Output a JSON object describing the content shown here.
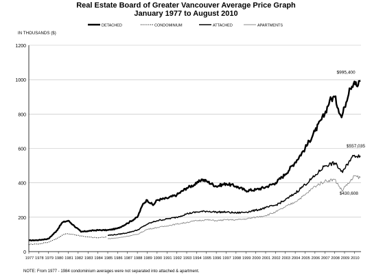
{
  "title": "Real Estate Board of Greater Vancouver Average Price Graph",
  "subtitle": "January 1977 to August 2010",
  "y_unit_label": "IN THOUSANDS ($)",
  "note": "NOTE:  From 1977 - 1984 condominium averages were not separated into attached & apartment.",
  "chart_data": {
    "type": "line",
    "title": "Real Estate Board of Greater Vancouver Average Price Graph",
    "subtitle": "January 1977 to August 2010",
    "ylabel": "IN THOUSANDS ($)",
    "ylim": [
      0,
      1200
    ],
    "yticks": [
      0,
      200,
      400,
      600,
      800,
      1000,
      1200
    ],
    "xlim": [
      1977,
      2010.67
    ],
    "xticks": [
      "1977",
      "1978",
      "1979",
      "1980",
      "1981",
      "1982",
      "1983",
      "1984",
      "1985",
      "1986",
      "1987",
      "1988",
      "1989",
      "1990",
      "1991",
      "1992",
      "1993",
      "1994",
      "1995",
      "1996",
      "1997",
      "1998",
      "1999",
      "2000",
      "2001",
      "2002",
      "2003",
      "2004",
      "2005",
      "2006",
      "2007",
      "2008",
      "2009",
      "2010"
    ],
    "grid": true,
    "legend": "top",
    "annotations": [
      "$995,400",
      "$557,035",
      "$430,608"
    ],
    "series": [
      {
        "name": "DETACHED",
        "color": "#000000",
        "style": "thick",
        "x": [
          1977,
          1978,
          1979,
          1979.8,
          1980.4,
          1981,
          1981.6,
          1982.3,
          1983,
          1984,
          1985,
          1986,
          1987,
          1988,
          1988.6,
          1989,
          1989.6,
          1990,
          1991,
          1992,
          1993,
          1994,
          1994.5,
          1995,
          1996,
          1997,
          1998,
          1999,
          2000,
          2001,
          2002,
          2003,
          2004,
          2005,
          2006,
          2007,
          2007.5,
          2008,
          2008.7,
          2009,
          2009.5,
          2010,
          2010.3,
          2010.6
        ],
        "y": [
          65,
          67,
          75,
          120,
          170,
          180,
          150,
          115,
          120,
          125,
          125,
          135,
          165,
          200,
          280,
          300,
          270,
          300,
          310,
          330,
          370,
          395,
          420,
          410,
          380,
          395,
          380,
          355,
          360,
          375,
          400,
          450,
          520,
          600,
          700,
          800,
          880,
          900,
          780,
          840,
          950,
          990,
          960,
          995
        ]
      },
      {
        "name": "CONDOMINIUM",
        "color": "#000000",
        "style": "dotted",
        "x": [
          1977,
          1978,
          1979,
          1980,
          1980.5,
          1981,
          1982,
          1983,
          1984,
          1984.9
        ],
        "y": [
          42,
          45,
          55,
          80,
          100,
          105,
          95,
          85,
          80,
          85
        ]
      },
      {
        "name": "ATTACHED",
        "color": "#000000",
        "style": "medium",
        "x": [
          1985,
          1986,
          1987,
          1988,
          1989,
          1990,
          1991,
          1992,
          1993,
          1994,
          1995,
          1996,
          1997,
          1998,
          1999,
          2000,
          2001,
          2002,
          2003,
          2004,
          2005,
          2006,
          2007,
          2008,
          2008.8,
          2009,
          2009.5,
          2010,
          2010.6
        ],
        "y": [
          95,
          100,
          110,
          125,
          160,
          180,
          190,
          200,
          220,
          230,
          235,
          230,
          230,
          225,
          230,
          240,
          255,
          270,
          300,
          340,
          390,
          440,
          500,
          515,
          460,
          480,
          530,
          560,
          557
        ]
      },
      {
        "name": "APARTMENTS",
        "color": "#888888",
        "style": "thin",
        "x": [
          1985,
          1986,
          1987,
          1988,
          1989,
          1990,
          1991,
          1992,
          1993,
          1994,
          1995,
          1996,
          1997,
          1998,
          1999,
          2000,
          2001,
          2002,
          2003,
          2004,
          2005,
          2006,
          2007,
          2008,
          2008.8,
          2009,
          2009.5,
          2010,
          2010.6
        ],
        "y": [
          75,
          80,
          90,
          100,
          130,
          140,
          150,
          160,
          170,
          180,
          185,
          180,
          185,
          185,
          190,
          200,
          210,
          230,
          260,
          290,
          330,
          380,
          410,
          420,
          350,
          380,
          400,
          440,
          430
        ]
      }
    ]
  }
}
